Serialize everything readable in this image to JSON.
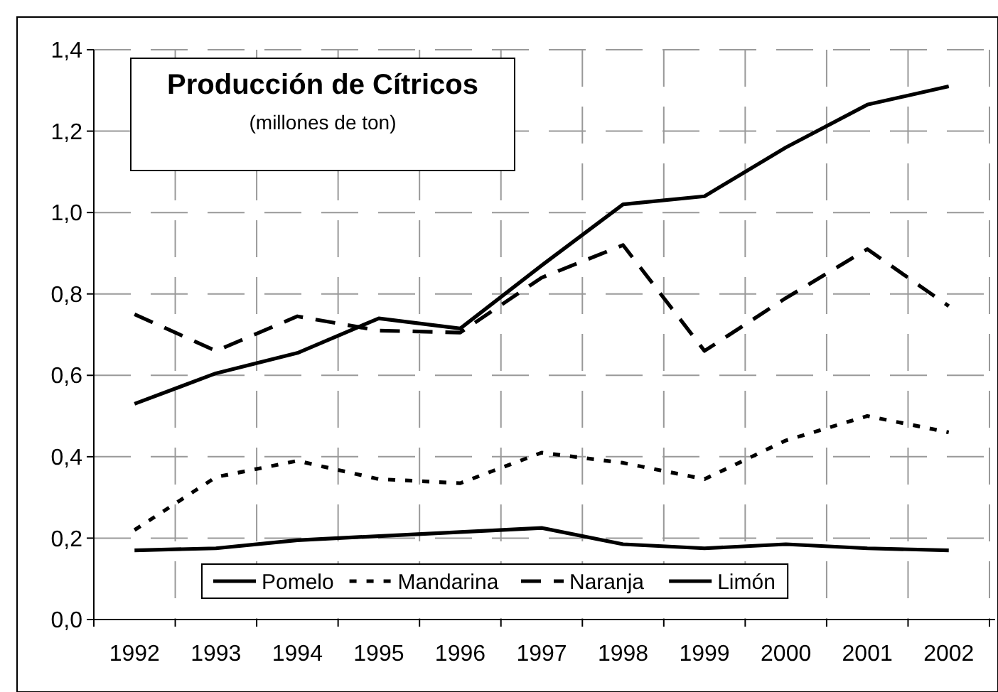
{
  "chart_data": {
    "type": "line",
    "title": "Producción de Cítricos",
    "subtitle": "(millones de ton)",
    "categories": [
      "1992",
      "1993",
      "1994",
      "1995",
      "1996",
      "1997",
      "1998",
      "1999",
      "2000",
      "2001",
      "2002"
    ],
    "series": [
      {
        "name": "Pomelo",
        "color": "#000000",
        "line_style": "solid",
        "values": [
          0.17,
          0.175,
          0.195,
          0.205,
          0.215,
          0.225,
          0.185,
          0.175,
          0.185,
          0.175,
          0.17
        ]
      },
      {
        "name": "Mandarina",
        "color": "#000000",
        "line_style": "dotted",
        "values": [
          0.22,
          0.35,
          0.39,
          0.345,
          0.335,
          0.41,
          0.385,
          0.345,
          0.44,
          0.5,
          0.46
        ]
      },
      {
        "name": "Naranja",
        "color": "#000000",
        "line_style": "dashed",
        "values": [
          0.75,
          0.66,
          0.745,
          0.71,
          0.705,
          0.84,
          0.92,
          0.66,
          0.79,
          0.91,
          0.77
        ]
      },
      {
        "name": "Limón",
        "color": "#000000",
        "line_style": "solid",
        "values": [
          0.53,
          0.605,
          0.655,
          0.74,
          0.715,
          0.87,
          1.02,
          1.04,
          1.16,
          1.265,
          1.31
        ]
      }
    ],
    "ylim": [
      0,
      1.4
    ],
    "yticks": [
      {
        "value": 0,
        "label": "0,0"
      },
      {
        "value": 0.2,
        "label": "0,2"
      },
      {
        "value": 0.4,
        "label": "0,4"
      },
      {
        "value": 0.6,
        "label": "0,6"
      },
      {
        "value": 0.8,
        "label": "0,8"
      },
      {
        "value": 1,
        "label": "1,0"
      },
      {
        "value": 1.2,
        "label": "1,2"
      },
      {
        "value": 1.4,
        "label": "1,4"
      }
    ],
    "grid": true,
    "legend": "bottom"
  }
}
